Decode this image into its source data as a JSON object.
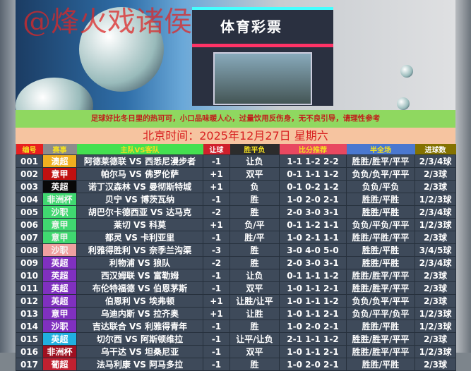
{
  "banner": {
    "watermark": "@烽火戏诸侯",
    "store_sign": "体育彩票"
  },
  "notice": "足球好比冬日里的热可可，小口品味暖人心，过量饮用反伤身，无不良引导，请理性参考",
  "date_line": "北京时间：2025年12月27日  星期六",
  "headers": [
    {
      "label": "编号",
      "bg": "#e82020",
      "fg": "#f4e020"
    },
    {
      "label": "赛事",
      "bg": "#8c8c8c",
      "fg": "#f4e020"
    },
    {
      "label": "主队VS客队",
      "bg": "#44e050",
      "fg": "#f4e020"
    },
    {
      "label": "让球",
      "bg": "#d0202c",
      "fg": "#ffffff"
    },
    {
      "label": "胜平负",
      "bg": "#2c2c2c",
      "fg": "#f4e020"
    },
    {
      "label": "比分推荐",
      "bg": "#e84860",
      "fg": "#f4e020"
    },
    {
      "label": "半全场",
      "bg": "#4a78d0",
      "fg": "#f4e020"
    },
    {
      "label": "进球数",
      "bg": "#847200",
      "fg": "#ffffff"
    }
  ],
  "rows": [
    {
      "no": "001",
      "league": "澳超",
      "color": "#f0b020",
      "match": "阿德莱德联 VS 西悉尼漫步者",
      "handicap": "-1",
      "wdl": "让负",
      "score": "1-1 1-2 2-2",
      "hf": "胜胜/胜平/平平",
      "goals": "2/3/4球"
    },
    {
      "no": "002",
      "league": "意甲",
      "color": "#c01010",
      "match": "帕尔马 VS 佛罗伦萨",
      "handicap": "+1",
      "wdl": "双平",
      "score": "0-1 1-1 1-2",
      "hf": "负负/负平/平平",
      "goals": "2/3球"
    },
    {
      "no": "003",
      "league": "英超",
      "color": "#080808",
      "match": "诺丁汉森林 VS 曼彻斯特城",
      "handicap": "+1",
      "wdl": "负",
      "score": "0-1 0-2 1-2",
      "hf": "负负/平负",
      "goals": "2/3球"
    },
    {
      "no": "004",
      "league": "非洲杯",
      "color": "#40d870",
      "match": "贝宁 VS 博茨瓦纳",
      "handicap": "-1",
      "wdl": "胜",
      "score": "1-0 2-0 2-1",
      "hf": "胜胜/平胜",
      "goals": "1/2/3球"
    },
    {
      "no": "005",
      "league": "沙职",
      "color": "#40d870",
      "match": "胡巴尔卡德西亚 VS 达马克",
      "handicap": "-2",
      "wdl": "胜",
      "score": "2-0 3-0 3-1",
      "hf": "胜胜/平胜",
      "goals": "2/3/4球"
    },
    {
      "no": "006",
      "league": "意甲",
      "color": "#40d870",
      "match": "莱切 VS 科莫",
      "handicap": "+1",
      "wdl": "负/平",
      "score": "0-1 1-2 1-1",
      "hf": "负负/平负/平平",
      "goals": "1/2/3球"
    },
    {
      "no": "007",
      "league": "意甲",
      "color": "#40d870",
      "match": "都灵 VS 卡利亚里",
      "handicap": "-1",
      "wdl": "胜/平",
      "score": "1-0 2-1 1-1",
      "hf": "胜胜/平胜/平平",
      "goals": "2/3球"
    },
    {
      "no": "008",
      "league": "沙职",
      "color": "#f0a0a0",
      "match": "利雅得胜利 VS 奈季兰沟渠",
      "handicap": "-3",
      "wdl": "胜",
      "score": "3-0 4-0 5-0",
      "hf": "胜胜/平胜",
      "goals": "3/4/5球"
    },
    {
      "no": "009",
      "league": "英超",
      "color": "#8030c0",
      "match": "利物浦 VS 狼队",
      "handicap": "-2",
      "wdl": "胜",
      "score": "2-0 3-0 3-1",
      "hf": "胜胜/平胜",
      "goals": "2/3/4球"
    },
    {
      "no": "010",
      "league": "英超",
      "color": "#8030c0",
      "match": "西汉姆联 VS 富勒姆",
      "handicap": "-1",
      "wdl": "让负",
      "score": "0-1 1-1 1-2",
      "hf": "胜胜/胜平/平平",
      "goals": "2/3球"
    },
    {
      "no": "011",
      "league": "英超",
      "color": "#8030c0",
      "match": "布伦特福德 VS 伯恩茅斯",
      "handicap": "-1",
      "wdl": "双平",
      "score": "1-0 1-1 2-1",
      "hf": "胜胜/胜平/平平",
      "goals": "2/3球"
    },
    {
      "no": "012",
      "league": "英超",
      "color": "#8030c0",
      "match": "伯恩利 VS 埃弗顿",
      "handicap": "+1",
      "wdl": "让胜/让平",
      "score": "1-0 1-1 1-2",
      "hf": "负负/负平/平平",
      "goals": "2/3球"
    },
    {
      "no": "013",
      "league": "意甲",
      "color": "#8030c0",
      "match": "乌迪内斯 VS 拉齐奥",
      "handicap": "+1",
      "wdl": "让胜",
      "score": "1-0 1-1 2-1",
      "hf": "负负/平平/负平",
      "goals": "1/2/3球"
    },
    {
      "no": "014",
      "league": "沙职",
      "color": "#8030c0",
      "match": "吉达联合 VS 利雅得青年",
      "handicap": "-1",
      "wdl": "胜",
      "score": "1-0 2-0 2-1",
      "hf": "胜胜/平胜",
      "goals": "1/2/3球"
    },
    {
      "no": "015",
      "league": "英超",
      "color": "#20b0e0",
      "match": "切尔西 VS 阿斯顿维拉",
      "handicap": "-1",
      "wdl": "让平/让负",
      "score": "2-1 1-1 1-2",
      "hf": "胜胜/胜平/平平",
      "goals": "2/3球"
    },
    {
      "no": "016",
      "league": "非洲杯",
      "color": "#a01020",
      "match": "乌干达 VS 坦桑尼亚",
      "handicap": "-1",
      "wdl": "双平",
      "score": "1-0 1-1 2-1",
      "hf": "胜胜/胜平/平平",
      "goals": "1/2/3球"
    },
    {
      "no": "017",
      "league": "葡超",
      "color": "#c02030",
      "match": "法马利康 VS 阿马多拉",
      "handicap": "-1",
      "wdl": "胜",
      "score": "1-0 2-0 2-1",
      "hf": "胜胜/平胜",
      "goals": "2/3球"
    }
  ]
}
